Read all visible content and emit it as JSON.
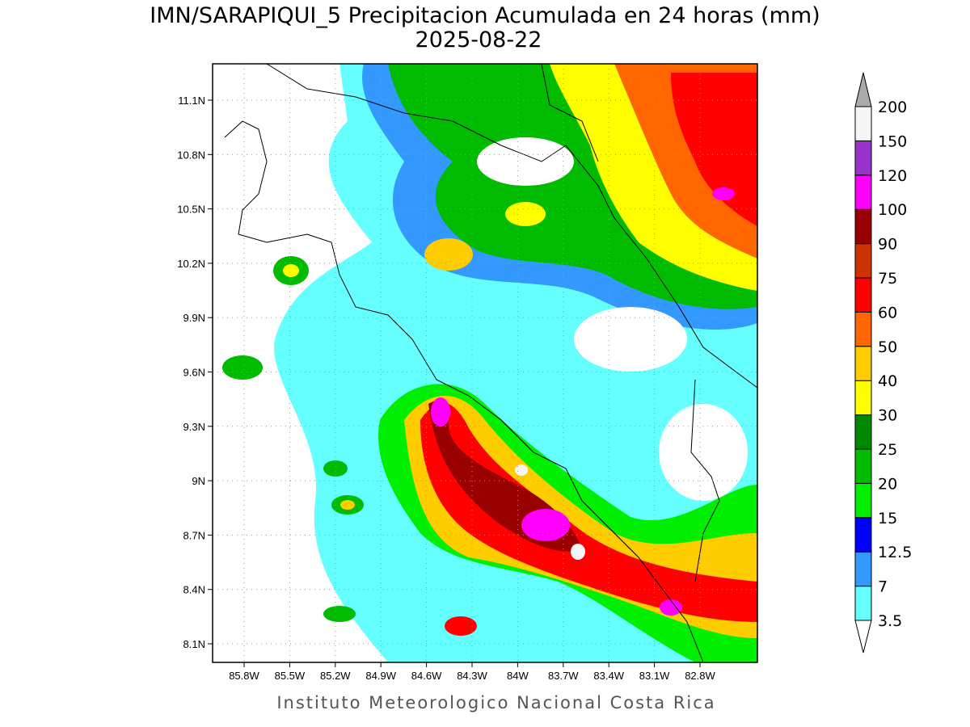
{
  "title": "IMN/SARAPIQUI_5 Precipitacion Acumulada en 24 horas (mm)",
  "date": "2025-08-22",
  "lat_ticks": [
    "11.1N",
    "10.8N",
    "10.5N",
    "10.2N",
    "9.9N",
    "9.6N",
    "9.3N",
    "9N",
    "8.7N",
    "8.4N",
    "8.1N"
  ],
  "lon_ticks": [
    "85.8W",
    "85.5W",
    "85.2W",
    "84.9W",
    "84.6W",
    "84.3W",
    "84W",
    "83.7W",
    "83.4W",
    "83.1W",
    "82.8W"
  ],
  "colorbar": {
    "levels": [
      3.5,
      7,
      12.5,
      15,
      20,
      25,
      30,
      40,
      50,
      60,
      75,
      90,
      100,
      120,
      150,
      200
    ],
    "colors": [
      "#ffffff",
      "#66ffff",
      "#3399ff",
      "#0000ff",
      "#00ee00",
      "#00bb00",
      "#008800",
      "#ffff00",
      "#ffcc00",
      "#ff6600",
      "#ff0000",
      "#cc3300",
      "#990000",
      "#ff00ff",
      "#9933cc",
      "#f5f5f5",
      "#aaaaaa"
    ]
  },
  "footer": "Instituto Meteorologico Nacional Costa Rica"
}
